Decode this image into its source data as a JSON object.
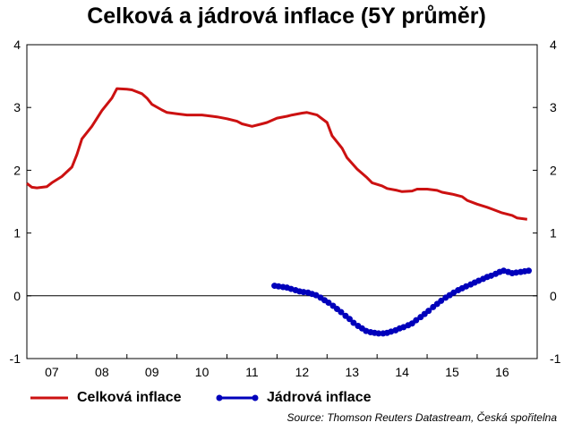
{
  "title": "Celková a jádrová inflace (5Y průměr)",
  "source": "Source: Thomson Reuters Datastream, Česká spořitelna",
  "chart_data": {
    "type": "line",
    "ylim": [
      -1,
      4
    ],
    "y_ticks": [
      -1,
      0,
      1,
      2,
      3,
      4
    ],
    "y_tick_labels": [
      "-1",
      "0",
      "1",
      "2",
      "3",
      "4"
    ],
    "xlim": [
      2006.5,
      2016.7
    ],
    "x_ticks": [
      2007,
      2008,
      2009,
      2010,
      2011,
      2012,
      2013,
      2014,
      2015,
      2016
    ],
    "x_tick_labels": [
      "07",
      "08",
      "09",
      "10",
      "11",
      "12",
      "13",
      "14",
      "15",
      "16"
    ],
    "grid": false,
    "zero_line": true,
    "dual_axis_labels": true,
    "legend_position": "bottom-left",
    "series": [
      {
        "name": "Celková inflace",
        "color": "#cc1111",
        "marker": "none",
        "x": [
          2006.5,
          2006.6,
          2006.7,
          2006.9,
          2007.0,
          2007.2,
          2007.4,
          2007.5,
          2007.6,
          2007.8,
          2008.0,
          2008.2,
          2008.3,
          2008.5,
          2008.6,
          2008.8,
          2008.9,
          2009.0,
          2009.2,
          2009.3,
          2009.5,
          2009.7,
          2009.8,
          2010.0,
          2010.2,
          2010.3,
          2010.5,
          2010.7,
          2010.8,
          2011.0,
          2011.2,
          2011.3,
          2011.5,
          2011.7,
          2011.8,
          2012.0,
          2012.1,
          2012.3,
          2012.5,
          2012.6,
          2012.8,
          2012.9,
          2013.1,
          2013.3,
          2013.4,
          2013.6,
          2013.7,
          2013.9,
          2014.0,
          2014.2,
          2014.3,
          2014.5,
          2014.7,
          2014.8,
          2015.0,
          2015.2,
          2015.3,
          2015.5,
          2015.7,
          2015.8,
          2016.0,
          2016.2,
          2016.3,
          2016.5
        ],
        "values": [
          1.79,
          1.73,
          1.72,
          1.74,
          1.8,
          1.9,
          2.05,
          2.25,
          2.5,
          2.7,
          2.95,
          3.15,
          3.3,
          3.29,
          3.28,
          3.22,
          3.15,
          3.05,
          2.96,
          2.92,
          2.9,
          2.88,
          2.88,
          2.88,
          2.86,
          2.85,
          2.82,
          2.78,
          2.74,
          2.7,
          2.74,
          2.76,
          2.83,
          2.86,
          2.88,
          2.91,
          2.92,
          2.88,
          2.76,
          2.55,
          2.35,
          2.2,
          2.02,
          1.88,
          1.8,
          1.75,
          1.71,
          1.68,
          1.66,
          1.67,
          1.7,
          1.7,
          1.68,
          1.65,
          1.62,
          1.58,
          1.52,
          1.46,
          1.41,
          1.38,
          1.32,
          1.28,
          1.24,
          1.22
        ]
      },
      {
        "name": "Jádrová inflace",
        "color": "#0000bb",
        "marker": "circle",
        "x": [
          2011.45,
          2011.53,
          2011.62,
          2011.7,
          2011.78,
          2011.87,
          2011.95,
          2012.03,
          2012.12,
          2012.2,
          2012.28,
          2012.37,
          2012.45,
          2012.53,
          2012.62,
          2012.7,
          2012.78,
          2012.87,
          2012.95,
          2013.03,
          2013.12,
          2013.2,
          2013.28,
          2013.37,
          2013.45,
          2013.53,
          2013.62,
          2013.7,
          2013.78,
          2013.87,
          2013.95,
          2014.03,
          2014.12,
          2014.2,
          2014.28,
          2014.37,
          2014.45,
          2014.53,
          2014.62,
          2014.7,
          2014.78,
          2014.87,
          2014.95,
          2015.03,
          2015.12,
          2015.2,
          2015.28,
          2015.37,
          2015.45,
          2015.53,
          2015.62,
          2015.7,
          2015.78,
          2015.87,
          2015.95,
          2016.03,
          2016.12,
          2016.2,
          2016.28,
          2016.37,
          2016.45,
          2016.53
        ],
        "values": [
          0.16,
          0.15,
          0.14,
          0.13,
          0.11,
          0.09,
          0.07,
          0.06,
          0.05,
          0.03,
          0.01,
          -0.03,
          -0.07,
          -0.11,
          -0.16,
          -0.21,
          -0.26,
          -0.32,
          -0.37,
          -0.43,
          -0.48,
          -0.52,
          -0.56,
          -0.58,
          -0.59,
          -0.6,
          -0.6,
          -0.59,
          -0.57,
          -0.55,
          -0.52,
          -0.5,
          -0.47,
          -0.44,
          -0.39,
          -0.34,
          -0.29,
          -0.24,
          -0.18,
          -0.13,
          -0.08,
          -0.03,
          0.01,
          0.05,
          0.09,
          0.12,
          0.15,
          0.18,
          0.21,
          0.24,
          0.27,
          0.3,
          0.32,
          0.35,
          0.38,
          0.4,
          0.38,
          0.36,
          0.37,
          0.38,
          0.39,
          0.4
        ]
      }
    ]
  }
}
